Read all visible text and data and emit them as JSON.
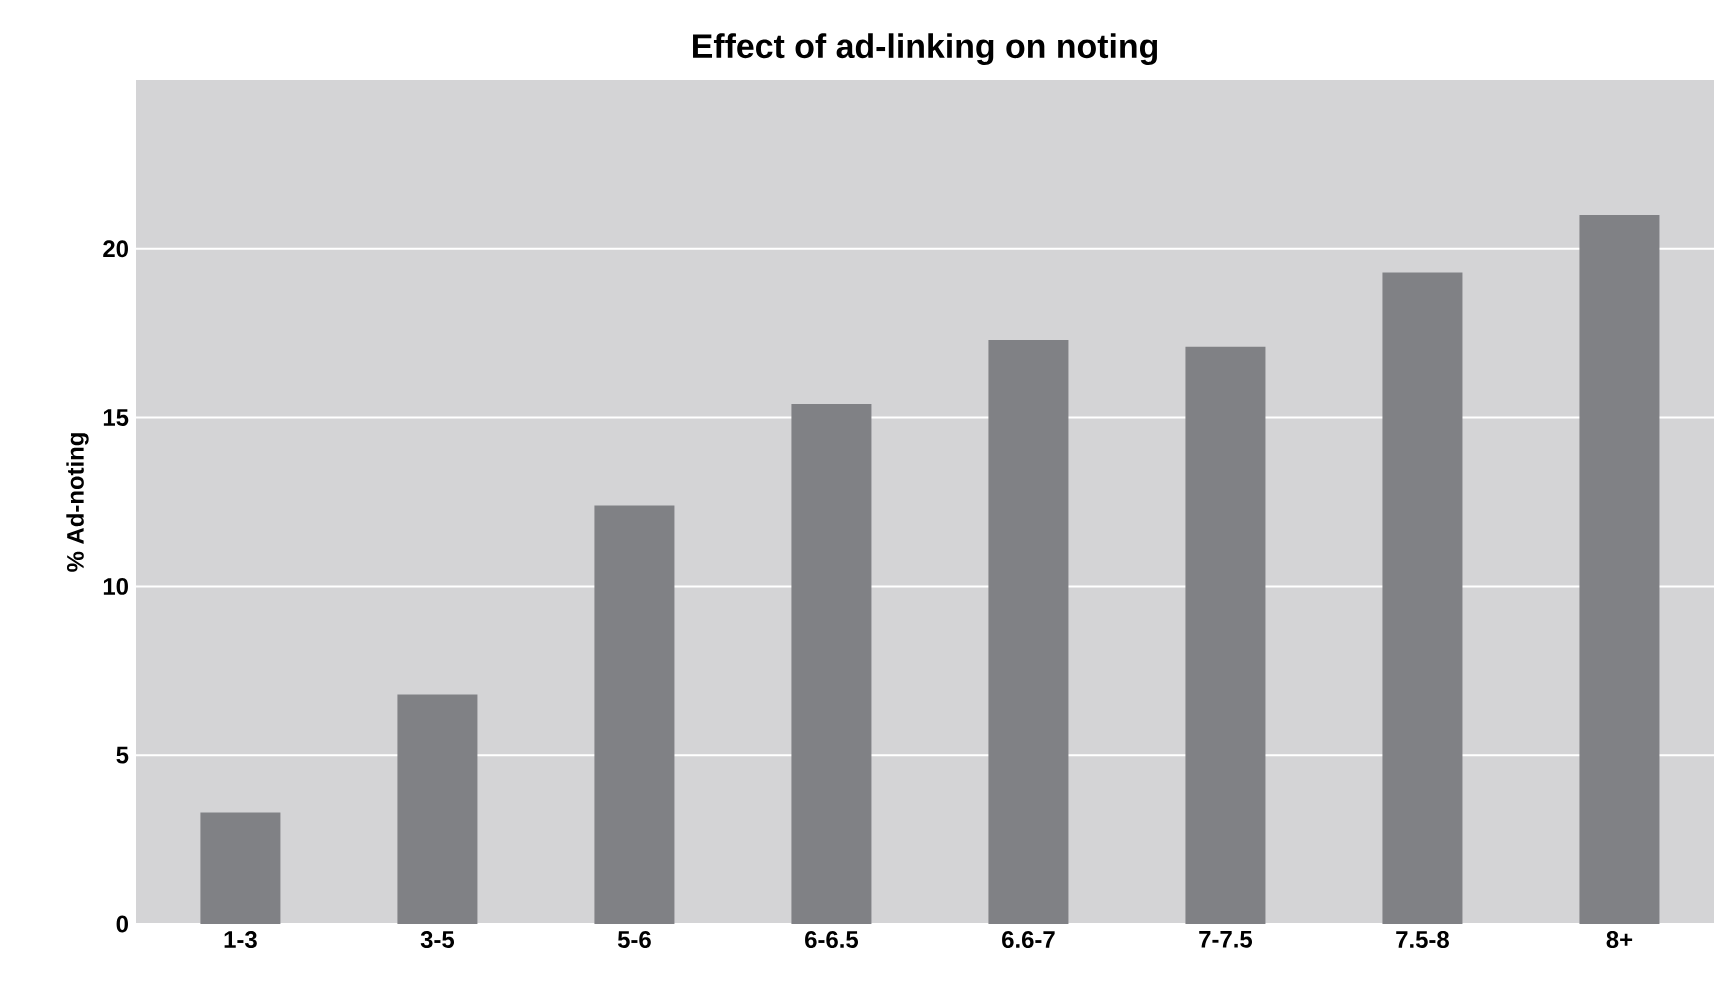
{
  "chart_data": {
    "type": "bar",
    "title": "Effect of ad-linking on noting",
    "ylabel": "% Ad-noting",
    "categories": [
      "1-3",
      "3-5",
      "5-6",
      "6-6.5",
      "6.6-7",
      "7-7.5",
      "7.5-8",
      "8+"
    ],
    "values": [
      3.3,
      6.8,
      12.4,
      15.4,
      17.3,
      17.1,
      19.3,
      21.0
    ],
    "color": "#808185",
    "ylim": [
      0,
      25
    ],
    "yticks": [
      0,
      5,
      10,
      15,
      20
    ],
    "grid": "y"
  }
}
